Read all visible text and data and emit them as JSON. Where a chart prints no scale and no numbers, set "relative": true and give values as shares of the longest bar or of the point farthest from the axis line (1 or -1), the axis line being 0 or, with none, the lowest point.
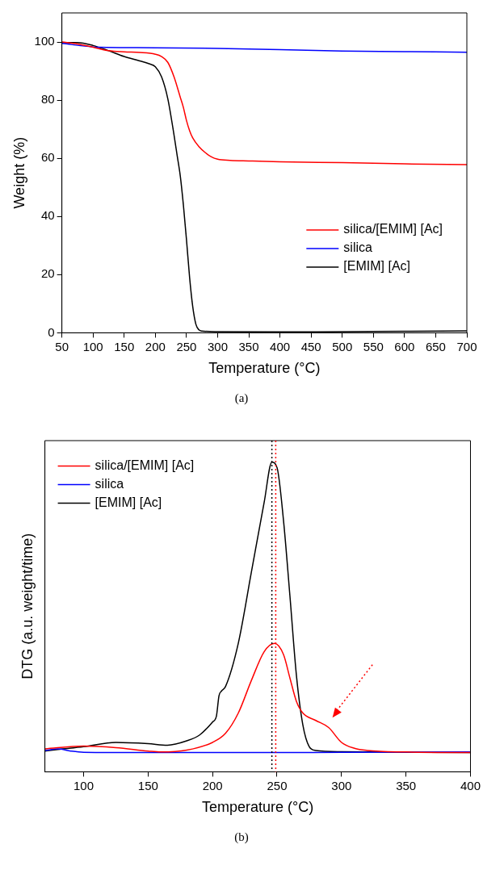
{
  "chart_data": [
    {
      "type": "line",
      "xlabel": "Temperature (°C)",
      "ylabel": "Weight (%)",
      "xlim": [
        50,
        700
      ],
      "ylim": [
        0,
        110
      ],
      "xticks": [
        50,
        100,
        150,
        200,
        250,
        300,
        350,
        400,
        450,
        500,
        550,
        600,
        650,
        700
      ],
      "yticks": [
        0,
        20,
        40,
        60,
        80,
        100
      ],
      "legend": "bottom right",
      "annotations": [
        "(a)"
      ],
      "series": [
        {
          "name": "silica/[EMIM] [Ac]",
          "color": "#ff0000",
          "x": [
            50,
            75,
            100,
            125,
            150,
            175,
            200,
            210,
            220,
            230,
            240,
            245,
            250,
            255,
            260,
            270,
            280,
            290,
            300,
            320,
            350,
            400,
            500,
            600,
            700
          ],
          "values": [
            100,
            99.3,
            98.2,
            97,
            96.6,
            96.4,
            95.8,
            95,
            93,
            88,
            81,
            77.5,
            73,
            69.5,
            67,
            64,
            62,
            60.5,
            59.7,
            59.3,
            59.1,
            58.8,
            58.5,
            58.1,
            57.8
          ]
        },
        {
          "name": "silica",
          "color": "#0000ff",
          "x": [
            50,
            100,
            110,
            200,
            300,
            400,
            500,
            600,
            700
          ],
          "values": [
            99.5,
            98.3,
            98.2,
            98,
            97.8,
            97.4,
            96.9,
            96.7,
            96.5
          ]
        },
        {
          "name": "[EMIM] [Ac]",
          "color": "#000000",
          "x": [
            50,
            75,
            100,
            125,
            150,
            175,
            190,
            200,
            210,
            220,
            230,
            235,
            240,
            245,
            250,
            255,
            260,
            265,
            270,
            275,
            300,
            400,
            500,
            600,
            700
          ],
          "values": [
            99.8,
            99.8,
            98.8,
            97,
            95,
            93.5,
            92.5,
            91.5,
            88,
            80.5,
            68,
            61,
            54,
            44,
            32,
            19,
            9,
            3,
            1,
            0.6,
            0.4,
            0.3,
            0.4,
            0.5,
            0.7
          ]
        }
      ]
    },
    {
      "type": "line",
      "relative": true,
      "xlabel": "Temperature (°C)",
      "ylabel": "DTG (a.u. weight/time)",
      "xlim": [
        70,
        400
      ],
      "xticks": [
        100,
        150,
        200,
        250,
        300,
        350,
        400
      ],
      "legend": "top left",
      "annotations": [
        "(b)"
      ],
      "ref_lines": [
        {
          "axis": "x",
          "value": 246,
          "color": "#000000",
          "line_style": "dotted"
        },
        {
          "axis": "x",
          "value": 249,
          "color": "#ff0000",
          "line_style": "dotted"
        }
      ],
      "series": [
        {
          "name": "silica/[EMIM] [Ac]",
          "color": "#ff0000",
          "x": [
            70,
            100,
            125,
            150,
            160,
            180,
            200,
            210,
            220,
            230,
            240,
            248,
            255,
            260,
            265,
            270,
            280,
            290,
            300,
            310,
            320,
            350,
            400
          ],
          "values": [
            0.074,
            0.083,
            0.078,
            0.067,
            0.064,
            0.07,
            0.095,
            0.124,
            0.19,
            0.294,
            0.388,
            0.415,
            0.379,
            0.303,
            0.228,
            0.19,
            0.166,
            0.143,
            0.095,
            0.076,
            0.069,
            0.064,
            0.062
          ]
        },
        {
          "name": "silica",
          "color": "#0000ff",
          "x": [
            70,
            80,
            90,
            100,
            150,
            250,
            300,
            400
          ],
          "values": [
            0.069,
            0.074,
            0.067,
            0.063,
            0.062,
            0.062,
            0.063,
            0.064
          ]
        },
        {
          "name": "[EMIM] [Ac]",
          "color": "#000000",
          "x": [
            70,
            80,
            100,
            125,
            150,
            165,
            180,
            190,
            200,
            203,
            205,
            207,
            210,
            220,
            230,
            240,
            246,
            250,
            255,
            260,
            265,
            270,
            275,
            280,
            300,
            400
          ],
          "values": [
            0.067,
            0.072,
            0.081,
            0.095,
            0.091,
            0.086,
            0.1,
            0.119,
            0.161,
            0.18,
            0.246,
            0.261,
            0.275,
            0.416,
            0.643,
            0.87,
            1,
            0.983,
            0.813,
            0.568,
            0.313,
            0.152,
            0.081,
            0.069,
            0.065,
            0.062
          ]
        }
      ]
    }
  ]
}
